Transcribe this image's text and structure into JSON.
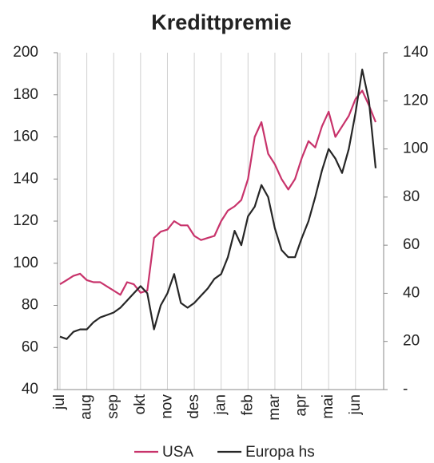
{
  "chart_data": {
    "type": "line",
    "title": "Kredittpremie",
    "categories": [
      "jul",
      null,
      null,
      null,
      "aug",
      null,
      null,
      null,
      "sep",
      null,
      null,
      null,
      "okt",
      null,
      null,
      null,
      "nov",
      null,
      null,
      null,
      "des",
      null,
      null,
      null,
      "jan",
      null,
      null,
      null,
      "feb",
      null,
      null,
      null,
      "mar",
      null,
      null,
      null,
      "apr",
      null,
      null,
      null,
      "mai",
      null,
      null,
      null,
      "jun",
      null,
      null,
      null
    ],
    "series": [
      {
        "name": "USA",
        "color": "#c8336b",
        "values": [
          90,
          92,
          94,
          95,
          92,
          91,
          91,
          89,
          87,
          85,
          91,
          90,
          86,
          87,
          112,
          115,
          116,
          120,
          118,
          118,
          113,
          111,
          112,
          113,
          120,
          125,
          127,
          130,
          140,
          160,
          167,
          152,
          147,
          140,
          135,
          140,
          150,
          158,
          155,
          165,
          172,
          160,
          165,
          170,
          178,
          182,
          175,
          167
        ]
      },
      {
        "name": "Europa hs",
        "color": "#262626",
        "axis": "y2",
        "values": [
          22,
          21,
          24,
          25,
          25,
          28,
          30,
          31,
          32,
          34,
          37,
          40,
          43,
          40,
          25,
          35,
          40,
          48,
          36,
          34,
          36,
          39,
          42,
          46,
          48,
          55,
          66,
          60,
          72,
          76,
          85,
          80,
          67,
          58,
          55,
          55,
          63,
          70,
          80,
          91,
          100,
          96,
          90,
          100,
          115,
          133,
          120,
          92
        ]
      }
    ],
    "ylim": [
      40,
      200
    ],
    "yticks": [
      40,
      60,
      80,
      100,
      120,
      140,
      160,
      180,
      200
    ],
    "y2lim": [
      0,
      140
    ],
    "y2ticks": [
      {
        "value": 0,
        "label": "-"
      },
      20,
      40,
      60,
      80,
      100,
      120,
      140
    ],
    "grid": "x",
    "legend": "bottom"
  }
}
